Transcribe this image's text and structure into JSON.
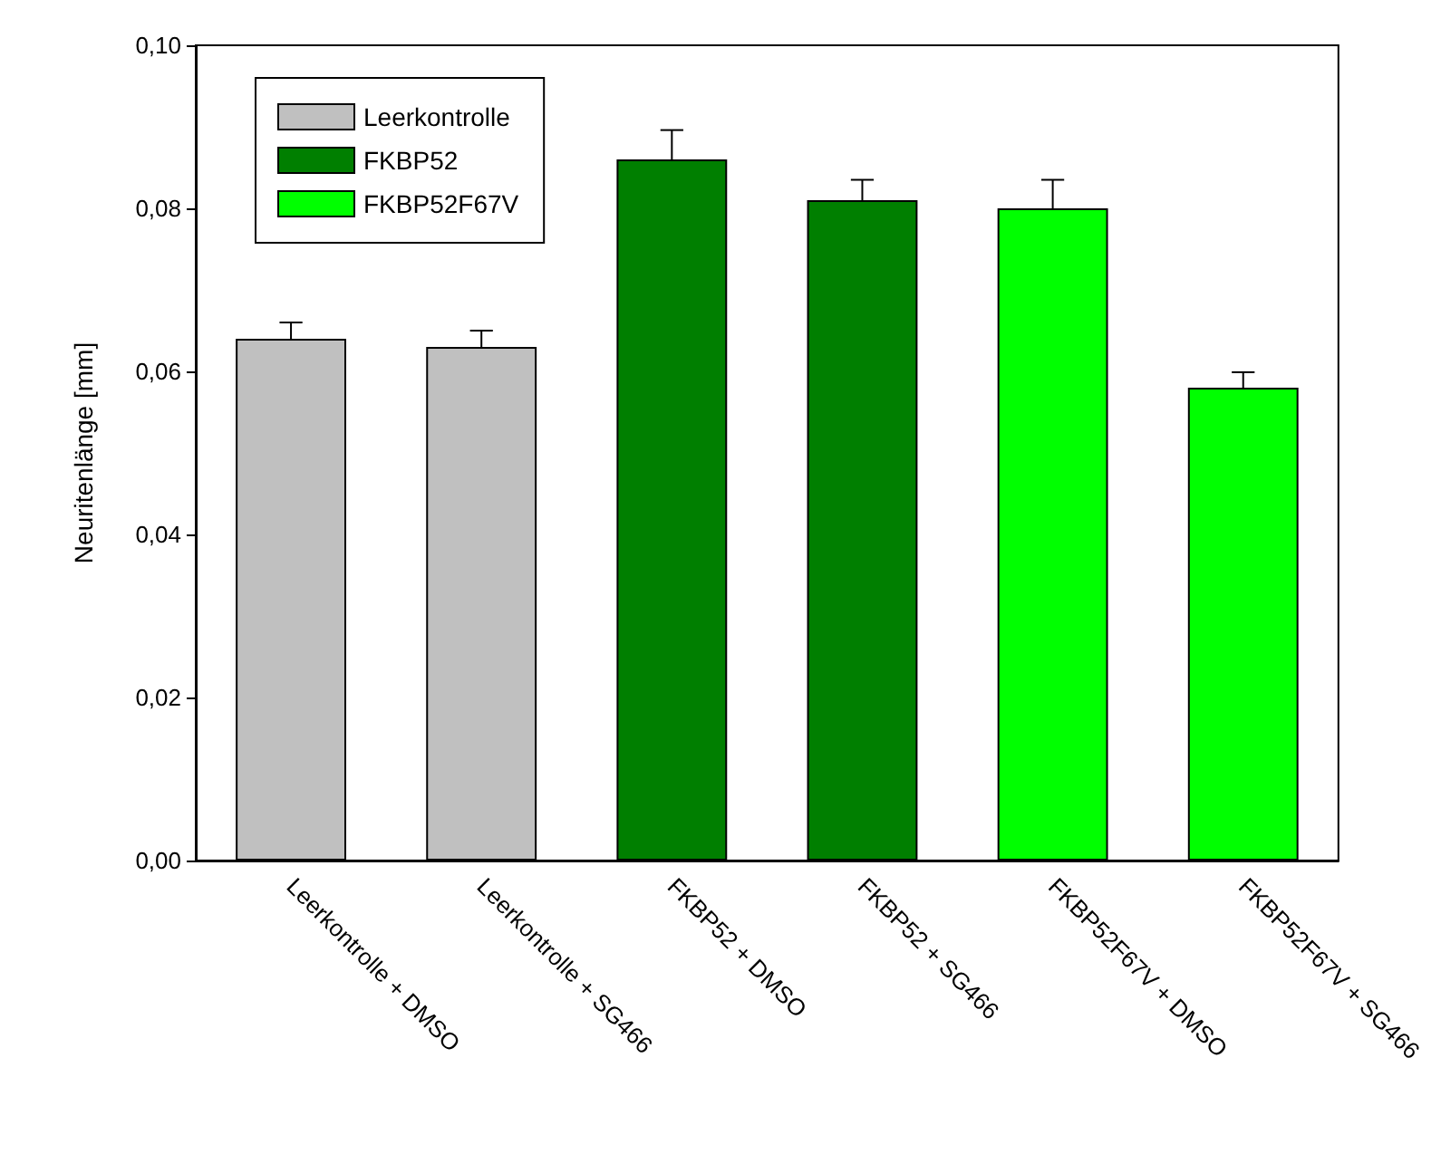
{
  "chart_data": {
    "type": "bar",
    "ylabel": "Neuritenlänge [mm]",
    "categories": [
      "Leerkontrolle + DMSO",
      "Leerkontrolle + SG466",
      "FKBP52 + DMSO",
      "FKBP52 + SG466",
      "FKBP52F67V + DMSO",
      "FKBP52F67V + SG466"
    ],
    "series": [
      {
        "name": "Leerkontrolle",
        "color": "#c0c0c0",
        "values": [
          0.064,
          0.063,
          null,
          null,
          null,
          null
        ],
        "errors": [
          [
            0.064,
            0.066
          ],
          [
            0.063,
            0.065
          ],
          null,
          null,
          null,
          null
        ]
      },
      {
        "name": "FKBP52",
        "color": "#007f00",
        "values": [
          null,
          null,
          0.086,
          0.081,
          null,
          null
        ],
        "errors": [
          null,
          null,
          [
            0.086,
            0.0896
          ],
          [
            0.081,
            0.0835
          ],
          null,
          null
        ]
      },
      {
        "name": "FKBP52F67V",
        "color": "#00ff00",
        "values": [
          null,
          null,
          null,
          null,
          0.08,
          0.058
        ],
        "errors": [
          null,
          null,
          null,
          null,
          [
            0.08,
            0.0835
          ],
          [
            0.058,
            0.0599
          ]
        ]
      }
    ],
    "ylim": [
      0,
      0.1
    ],
    "yticks": [
      {
        "value": 0,
        "label": "0,00"
      },
      {
        "value": 0.02,
        "label": "0,02"
      },
      {
        "value": 0.04,
        "label": "0,04"
      },
      {
        "value": 0.06,
        "label": "0,06"
      },
      {
        "value": 0.08,
        "label": "0,08"
      },
      {
        "value": 0.1,
        "label": "0,10"
      }
    ],
    "grid": false,
    "legend": "top left"
  }
}
